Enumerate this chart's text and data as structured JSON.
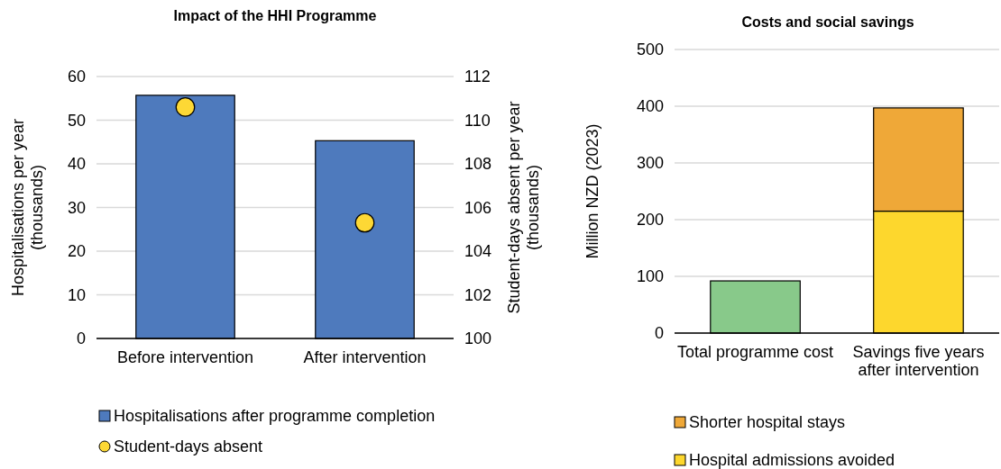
{
  "chart_data": [
    {
      "type": "bar",
      "title": "Impact of the HHI Programme",
      "categories": [
        "Before intervention",
        "After intervention"
      ],
      "ylabel": "Hospitalisations per year\n(thousands)",
      "y2label": "Student-days absent per year\n(thousands)",
      "series": [
        {
          "name": "Hospitalisations after programme completion",
          "color": "#4e7abd",
          "values": [
            55.7,
            45.3
          ]
        },
        {
          "name": "Student-days absent",
          "type": "scatter",
          "axis": "y2",
          "color": "#fdd835",
          "marker": "circle",
          "values": [
            110.6,
            105.3
          ]
        }
      ],
      "ylim": [
        0,
        60
      ],
      "yticks": [
        0,
        10,
        20,
        30,
        40,
        50,
        60
      ],
      "y2lim": [
        100,
        112
      ],
      "y2ticks": [
        100,
        102,
        104,
        106,
        108,
        110,
        112
      ],
      "grid": "y",
      "legend": "bottom"
    },
    {
      "type": "bar",
      "title": "Costs and social savings",
      "categories": [
        "Total programme cost",
        "Savings five years after intervention"
      ],
      "ylabel": "Million NZD (2023)",
      "stacked": true,
      "series": [
        {
          "color": "#88c98a",
          "values": [
            92,
            null
          ]
        },
        {
          "name": "Hospital admissions avoided",
          "color": "#fdd72d",
          "values": [
            null,
            215
          ]
        },
        {
          "name": "Shorter hospital stays",
          "color": "#efa838",
          "values": [
            null,
            182
          ]
        }
      ],
      "ylim": [
        0,
        500
      ],
      "yticks": [
        0,
        100,
        200,
        300,
        400,
        500
      ],
      "grid": "y",
      "legend": "bottom"
    }
  ]
}
